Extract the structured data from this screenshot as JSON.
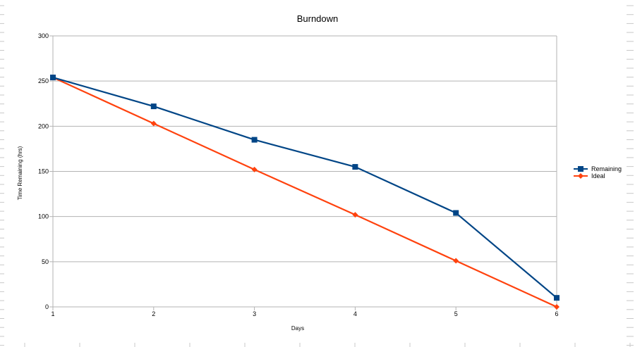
{
  "chart_data": {
    "type": "line",
    "title": "Burndown",
    "xlabel": "Days",
    "ylabel": "Time Remaining (hrs)",
    "x": [
      1,
      2,
      3,
      4,
      5,
      6
    ],
    "ylim": [
      0,
      300
    ],
    "yticks": [
      0,
      50,
      100,
      150,
      200,
      250,
      300
    ],
    "grid": true,
    "legend_position": "right",
    "series": [
      {
        "name": "Remaining",
        "color": "#004586",
        "marker": "square",
        "values": [
          254,
          222,
          185,
          155,
          104,
          10
        ]
      },
      {
        "name": "Ideal",
        "color": "#ff420e",
        "marker": "diamond",
        "values": [
          254,
          203,
          152,
          102,
          51,
          0
        ]
      }
    ]
  }
}
